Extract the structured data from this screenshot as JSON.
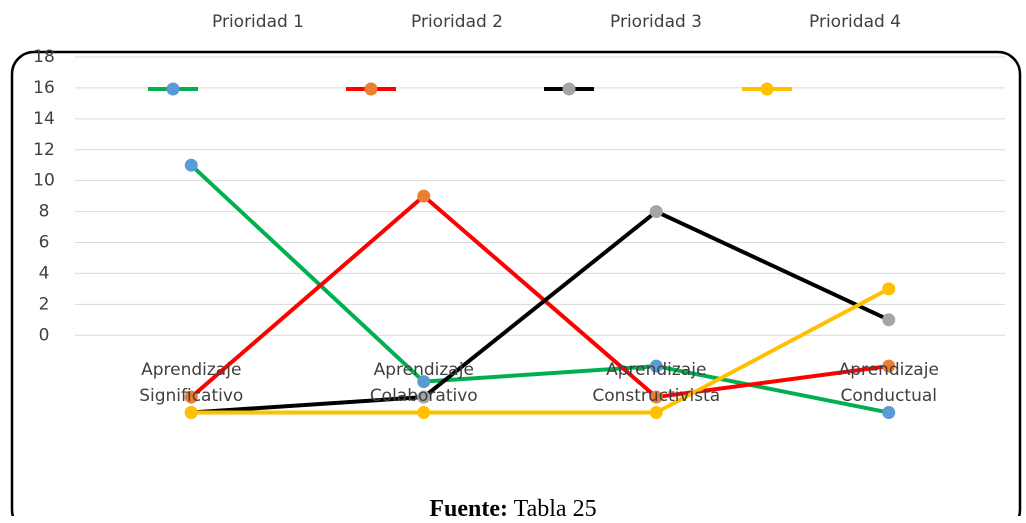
{
  "chart_data": {
    "type": "line",
    "categories": [
      "Aprendizaje Significativo",
      "Aprendizaje Colaborativo",
      "Aprendizaje Constructivista",
      "Aprendizaje Conductual"
    ],
    "series": [
      {
        "name": "Prioridad 1",
        "color": "#00b050",
        "marker_color": "#5b9bd5",
        "values": [
          11,
          -3,
          -2,
          -5
        ]
      },
      {
        "name": "Prioridad 2",
        "color": "#ff0000",
        "marker_color": "#ed7d31",
        "values": [
          -4,
          9,
          -4,
          -2
        ]
      },
      {
        "name": "Prioridad 3",
        "color": "#000000",
        "marker_color": "#a5a5a5",
        "values": [
          -5,
          -4,
          8,
          1
        ]
      },
      {
        "name": "Prioridad 4",
        "color": "#ffc000",
        "marker_color": "#ffc000",
        "values": [
          -5,
          -5,
          -5,
          3
        ]
      }
    ],
    "ylim": [
      -6,
      18
    ],
    "yticks": [
      0,
      2,
      4,
      6,
      8,
      10,
      12,
      14,
      16,
      18
    ],
    "grid": true,
    "footer": {
      "label": "Fuente:",
      "text": "Tabla 25"
    }
  }
}
